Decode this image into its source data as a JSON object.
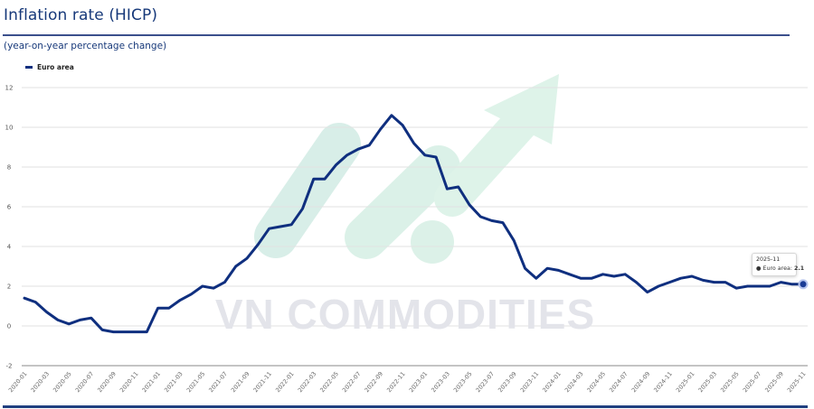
{
  "header": {
    "title": "Inflation rate (HICP)",
    "subtitle": "(year-on-year percentage change)"
  },
  "legend": {
    "items": [
      {
        "label": "Euro area",
        "color": "#0f2f7f"
      }
    ]
  },
  "watermark": {
    "text": "VN COMMODITIES",
    "logo_color": "#cfeee0",
    "text_color": "#e3e4ea"
  },
  "tooltip": {
    "date": "2025-11",
    "series_label": "Euro area:",
    "value": "2.1",
    "bullet": "●"
  },
  "colors": {
    "line": "#0f2f7f",
    "title": "#17397a",
    "grid": "#dcdcdc",
    "axis": "#888888"
  },
  "chart_data": {
    "type": "line",
    "title": "Inflation rate (HICP)",
    "subtitle": "(year-on-year percentage change)",
    "xlabel": "",
    "ylabel": "",
    "ylim": [
      -2,
      12
    ],
    "yticks": [
      -2,
      0,
      2,
      4,
      6,
      8,
      10,
      12
    ],
    "grid": true,
    "legend_position": "top-left",
    "xtick_labels": [
      "2020-01",
      "2020-03",
      "2020-05",
      "2020-07",
      "2020-09",
      "2020-11",
      "2021-01",
      "2021-03",
      "2021-05",
      "2021-07",
      "2021-09",
      "2021-11",
      "2022-01",
      "2022-03",
      "2022-05",
      "2022-07",
      "2022-09",
      "2022-11",
      "2023-01",
      "2023-03",
      "2023-05",
      "2023-07",
      "2023-09",
      "2023-11",
      "2024-01",
      "2024-03",
      "2024-05",
      "2024-07",
      "2024-09",
      "2024-11",
      "2025-01",
      "2025-03",
      "2025-05",
      "2025-07",
      "2025-09",
      "2025-11"
    ],
    "x": [
      "2020-01",
      "2020-02",
      "2020-03",
      "2020-04",
      "2020-05",
      "2020-06",
      "2020-07",
      "2020-08",
      "2020-09",
      "2020-10",
      "2020-11",
      "2020-12",
      "2021-01",
      "2021-02",
      "2021-03",
      "2021-04",
      "2021-05",
      "2021-06",
      "2021-07",
      "2021-08",
      "2021-09",
      "2021-10",
      "2021-11",
      "2021-12",
      "2022-01",
      "2022-02",
      "2022-03",
      "2022-04",
      "2022-05",
      "2022-06",
      "2022-07",
      "2022-08",
      "2022-09",
      "2022-10",
      "2022-11",
      "2022-12",
      "2023-01",
      "2023-02",
      "2023-03",
      "2023-04",
      "2023-05",
      "2023-06",
      "2023-07",
      "2023-08",
      "2023-09",
      "2023-10",
      "2023-11",
      "2023-12",
      "2024-01",
      "2024-02",
      "2024-03",
      "2024-04",
      "2024-05",
      "2024-06",
      "2024-07",
      "2024-08",
      "2024-09",
      "2024-10",
      "2024-11",
      "2024-12",
      "2025-01",
      "2025-02",
      "2025-03",
      "2025-04",
      "2025-05",
      "2025-06",
      "2025-07",
      "2025-08",
      "2025-09",
      "2025-10",
      "2025-11"
    ],
    "series": [
      {
        "name": "Euro area",
        "color": "#0f2f7f",
        "values": [
          1.4,
          1.2,
          0.7,
          0.3,
          0.1,
          0.3,
          0.4,
          -0.2,
          -0.3,
          -0.3,
          -0.3,
          -0.3,
          0.9,
          0.9,
          1.3,
          1.6,
          2.0,
          1.9,
          2.2,
          3.0,
          3.4,
          4.1,
          4.9,
          5.0,
          5.1,
          5.9,
          7.4,
          7.4,
          8.1,
          8.6,
          8.9,
          9.1,
          9.9,
          10.6,
          10.1,
          9.2,
          8.6,
          8.5,
          6.9,
          7.0,
          6.1,
          5.5,
          5.3,
          5.2,
          4.3,
          2.9,
          2.4,
          2.9,
          2.8,
          2.6,
          2.4,
          2.4,
          2.6,
          2.5,
          2.6,
          2.2,
          1.7,
          2.0,
          2.2,
          2.4,
          2.5,
          2.3,
          2.2,
          2.2,
          1.9,
          2.0,
          2.0,
          2.0,
          2.2,
          2.1,
          2.1
        ]
      }
    ],
    "annotations": [
      {
        "type": "tooltip",
        "x": "2025-11",
        "text": "Euro area: 2.1"
      }
    ]
  }
}
